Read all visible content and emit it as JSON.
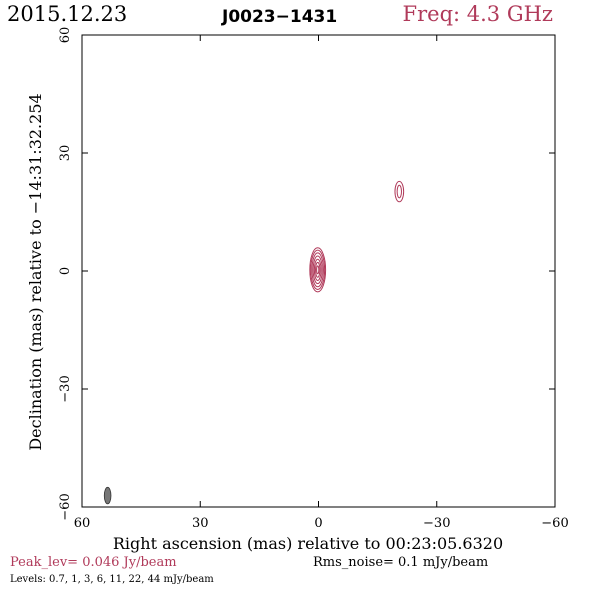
{
  "header": {
    "date": "2015.12.23",
    "source": "J0023−1431",
    "freq": "Freq: 4.3 GHz"
  },
  "colors": {
    "accent": "#b03a5a",
    "axes": "#000000",
    "beam": "#777777"
  },
  "footer": {
    "peak": "Peak_lev=  0.046 Jy/beam",
    "rms": "Rms_noise=  0.1 mJy/beam",
    "levels": "Levels: 0.7,   1,   3,   6,   11,   22,   44  mJy/beam"
  },
  "chart_data": {
    "type": "contour",
    "xlabel": "Right ascension (mas) relative to 00:23:05.6320",
    "ylabel": "Declination (mas) relative to −14:31:32.254",
    "xlim": [
      60,
      -60
    ],
    "ylim": [
      -60,
      60
    ],
    "xticks": [
      {
        "value": 60,
        "label": "60"
      },
      {
        "value": 30,
        "label": "30"
      },
      {
        "value": 0,
        "label": "0"
      },
      {
        "value": -30,
        "label": "−30"
      },
      {
        "value": -60,
        "label": "−60"
      }
    ],
    "yticks": [
      {
        "value": -60,
        "label": "−60"
      },
      {
        "value": -30,
        "label": "−30"
      },
      {
        "value": 0,
        "label": "0"
      },
      {
        "value": 30,
        "label": "30"
      },
      {
        "value": 60,
        "label": "60"
      }
    ],
    "levels_mjy_per_beam": [
      0.7,
      1,
      3,
      6,
      11,
      22,
      44
    ],
    "components": [
      {
        "ra": 0.2,
        "dec": 0.3,
        "contours": [
          {
            "rx": 2.0,
            "ry": 5.6
          },
          {
            "rx": 1.75,
            "ry": 5.0
          },
          {
            "rx": 1.45,
            "ry": 4.3
          },
          {
            "rx": 1.15,
            "ry": 3.5
          },
          {
            "rx": 0.85,
            "ry": 2.7
          },
          {
            "rx": 0.55,
            "ry": 1.9
          },
          {
            "rx": 0.28,
            "ry": 1.0
          }
        ]
      },
      {
        "ra": -20.5,
        "dec": 20.2,
        "contours": [
          {
            "rx": 1.1,
            "ry": 2.6
          },
          {
            "rx": 0.55,
            "ry": 1.6
          }
        ]
      }
    ],
    "beam": {
      "ra": 53.5,
      "dec": -57.1,
      "rx": 0.85,
      "ry": 2.1
    }
  }
}
